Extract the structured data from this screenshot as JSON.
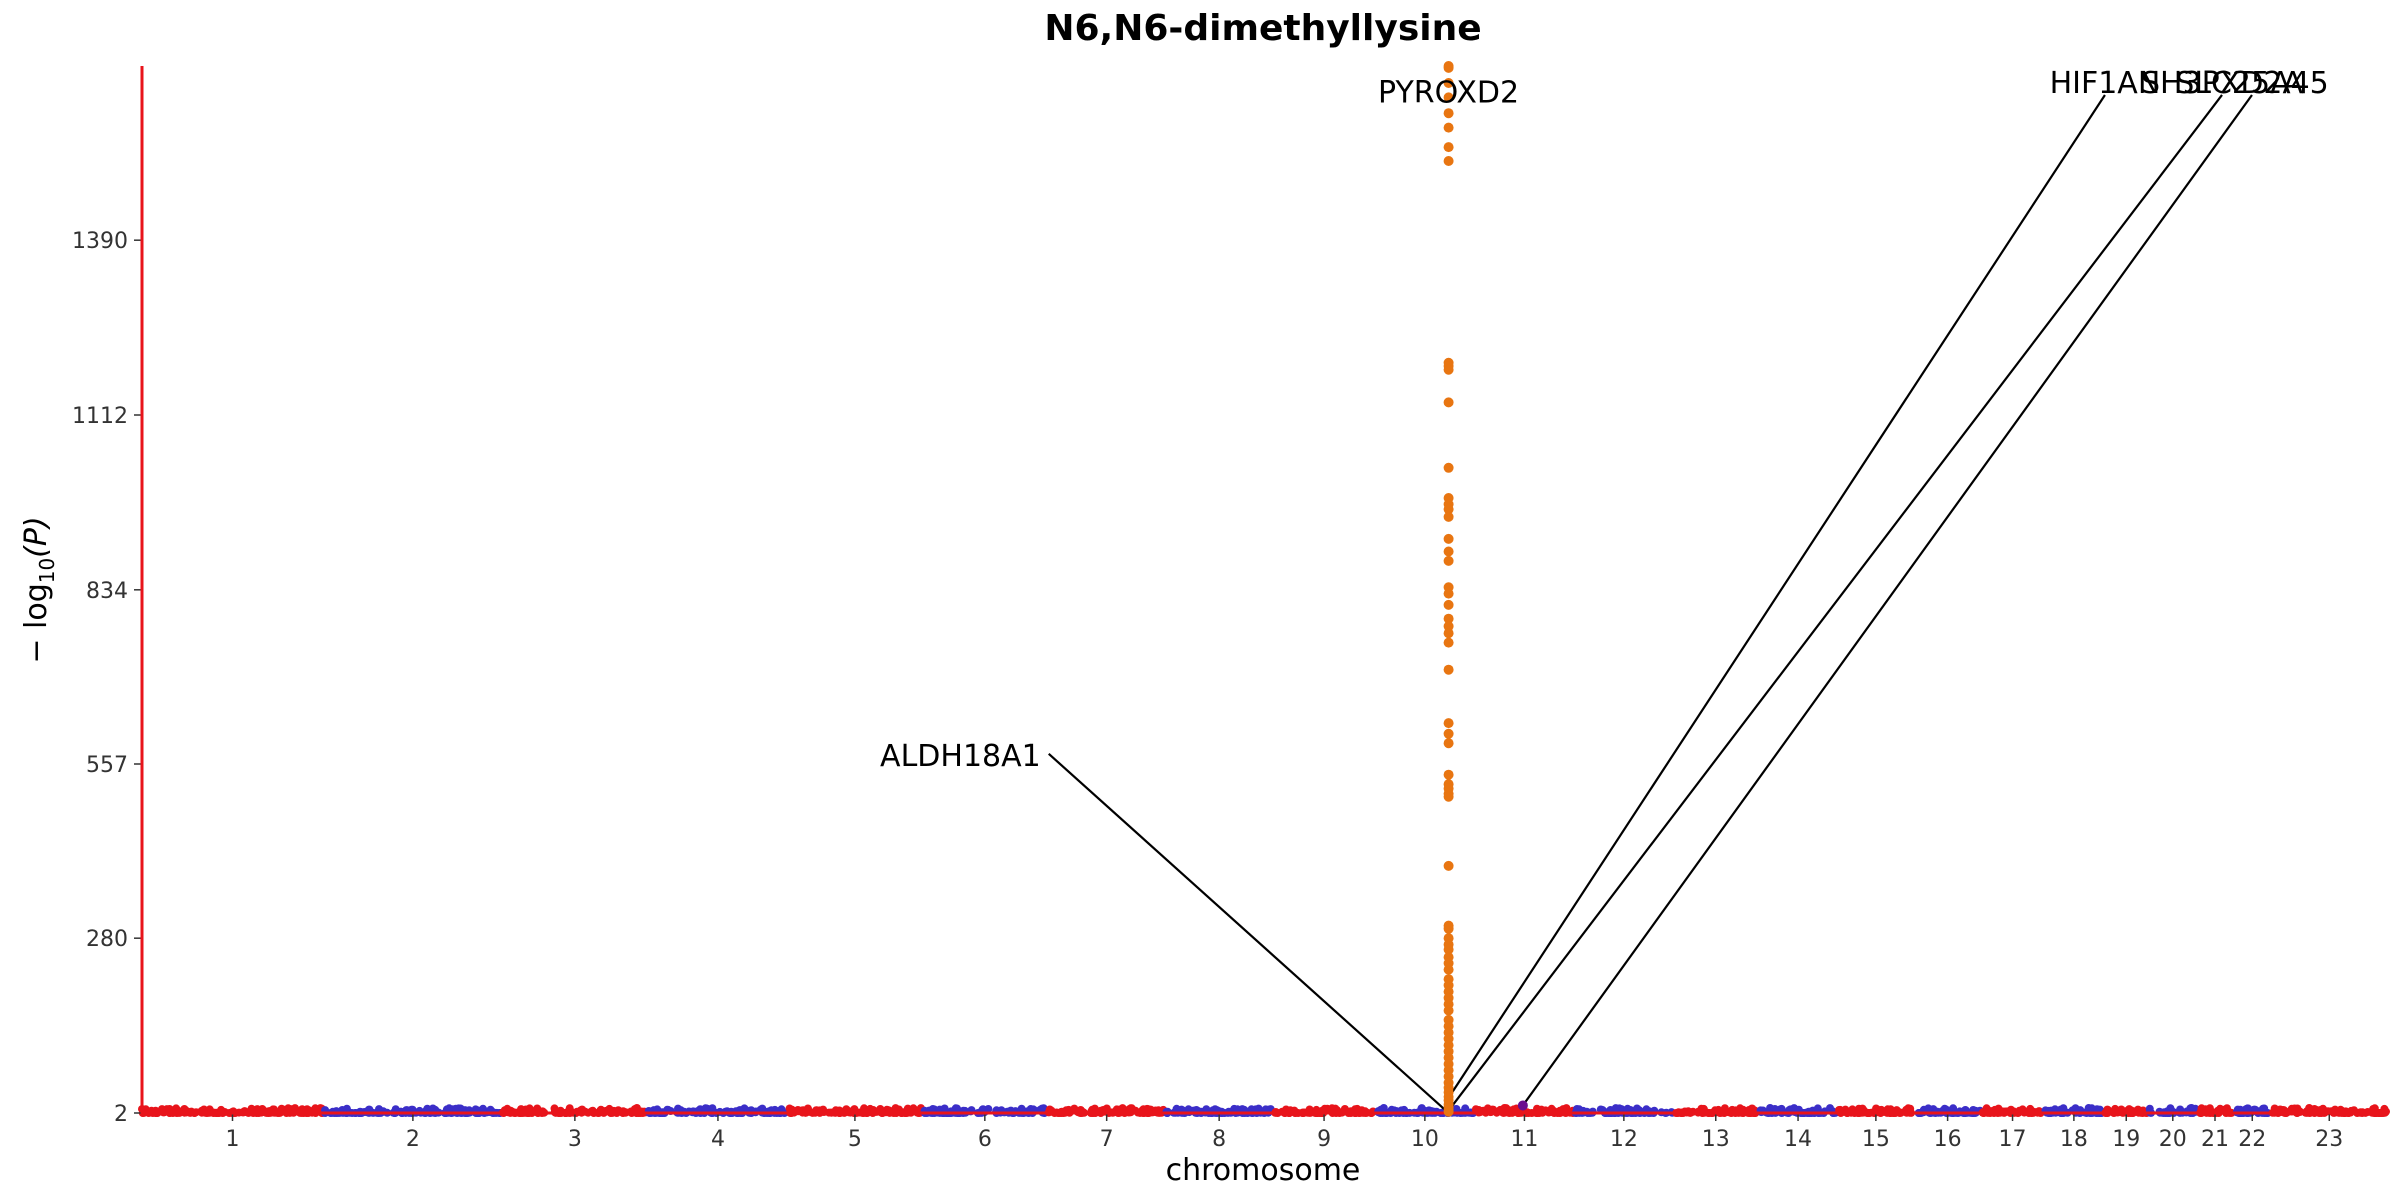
{
  "chart_data": {
    "type": "scatter",
    "subtype": "manhattan",
    "title": "N6,N6-dimethyllysine",
    "xlabel": "chromosome",
    "ylabel_prefix": "− log",
    "ylabel_sub": "10",
    "ylabel_suffix": "(P)",
    "ylim": [
      2,
      1667
    ],
    "y_ticks": [
      "2",
      "280",
      "557",
      "834",
      "1112",
      "1390"
    ],
    "y_tick_values": [
      2,
      280,
      557,
      834,
      1112,
      1390
    ],
    "chromosomes": [
      "1",
      "2",
      "3",
      "4",
      "5",
      "6",
      "7",
      "8",
      "9",
      "10",
      "11",
      "12",
      "13",
      "14",
      "15",
      "16",
      "17",
      "18",
      "19",
      "20",
      "21",
      "22",
      "23"
    ],
    "chromosome_sizes": [
      248.9,
      242.2,
      198.3,
      190.2,
      181.5,
      170.8,
      159.3,
      145.1,
      138.4,
      133.8,
      135.1,
      133.3,
      114.4,
      107.0,
      102.0,
      90.3,
      83.3,
      80.4,
      58.6,
      64.4,
      46.7,
      50.8,
      156.0
    ],
    "colors": {
      "axis": "#e8141b",
      "highlight": "#e87511",
      "chrom_palette": [
        "#e8141b",
        "#3b2ec8",
        "#e8141b",
        "#3b2ec8"
      ],
      "leader": "#000000"
    },
    "highlight_chromosome": "10",
    "highlight_position_mb": 99.5,
    "highlight_points": [
      1667,
      1664,
      1640,
      1617,
      1592,
      1569,
      1538,
      1516,
      1195,
      1190,
      1184,
      1132,
      1028,
      980,
      970,
      962,
      950,
      915,
      895,
      880,
      838,
      828,
      810,
      788,
      776,
      765,
      750,
      707,
      622,
      605,
      590,
      540,
      525,
      518,
      510,
      505,
      395,
      300,
      295,
      280,
      270,
      262,
      250,
      240,
      230,
      215,
      205,
      195,
      185,
      175,
      165,
      150,
      140,
      130,
      120,
      110,
      100,
      90,
      80,
      70,
      60,
      50,
      42,
      35,
      28,
      22,
      16,
      11,
      7,
      4
    ],
    "background_level_max": 10,
    "annotations": [
      {
        "label": "PYROXD2",
        "chromosome": "10",
        "position_mb": 99.5,
        "y": 1625,
        "label_anchor": "middle",
        "label_dx": 0,
        "label_y": 1625,
        "leader": false
      },
      {
        "label": "ALDH18A1",
        "chromosome": "10",
        "position_mb": 95.6,
        "y": 6,
        "label_chrom": "7",
        "label_mb": 0,
        "label_y": 570,
        "label_anchor": "end",
        "leader": true
      },
      {
        "label": "HIF1AN",
        "chromosome": "10",
        "position_mb": 100.6,
        "y": 28,
        "label_chrom": "19",
        "label_mb": 0,
        "label_y": 1640,
        "label_anchor": "middle",
        "leader": true
      },
      {
        "label": "SH3PXD2A",
        "chromosome": "10",
        "position_mb": 103.6,
        "y": 12,
        "label_chrom": "21",
        "label_mb": 33,
        "label_y": 1640,
        "label_anchor": "middle",
        "leader": true
      },
      {
        "label": "SLC25A45",
        "chromosome": "11",
        "position_mb": 65.4,
        "y": 14,
        "label_chrom": "22",
        "label_mb": 25,
        "label_y": 1640,
        "label_anchor": "middle",
        "leader": true
      }
    ]
  }
}
